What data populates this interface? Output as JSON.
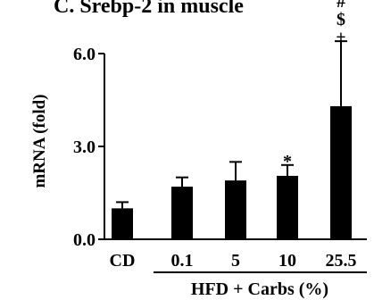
{
  "chart_data": {
    "type": "bar",
    "title": "C. Srebp-2 in muscle",
    "ylabel": "mRNA (fold)",
    "xlabel": "HFD + Carbs (%)",
    "categories": [
      "CD",
      "0.1",
      "5",
      "10",
      "25.5"
    ],
    "values": [
      1.0,
      1.7,
      1.9,
      2.05,
      4.3
    ],
    "error": [
      0.2,
      0.3,
      0.6,
      0.35,
      2.1
    ],
    "annotations": [
      "",
      "",
      "",
      "*",
      "+ $ #"
    ],
    "ylim": [
      0,
      6.0
    ],
    "yticks": [
      "0.0",
      "3.0",
      "6.0"
    ],
    "grid": false,
    "legend": "none",
    "colors": {
      "bar": "#000000",
      "axis": "#000000"
    }
  }
}
